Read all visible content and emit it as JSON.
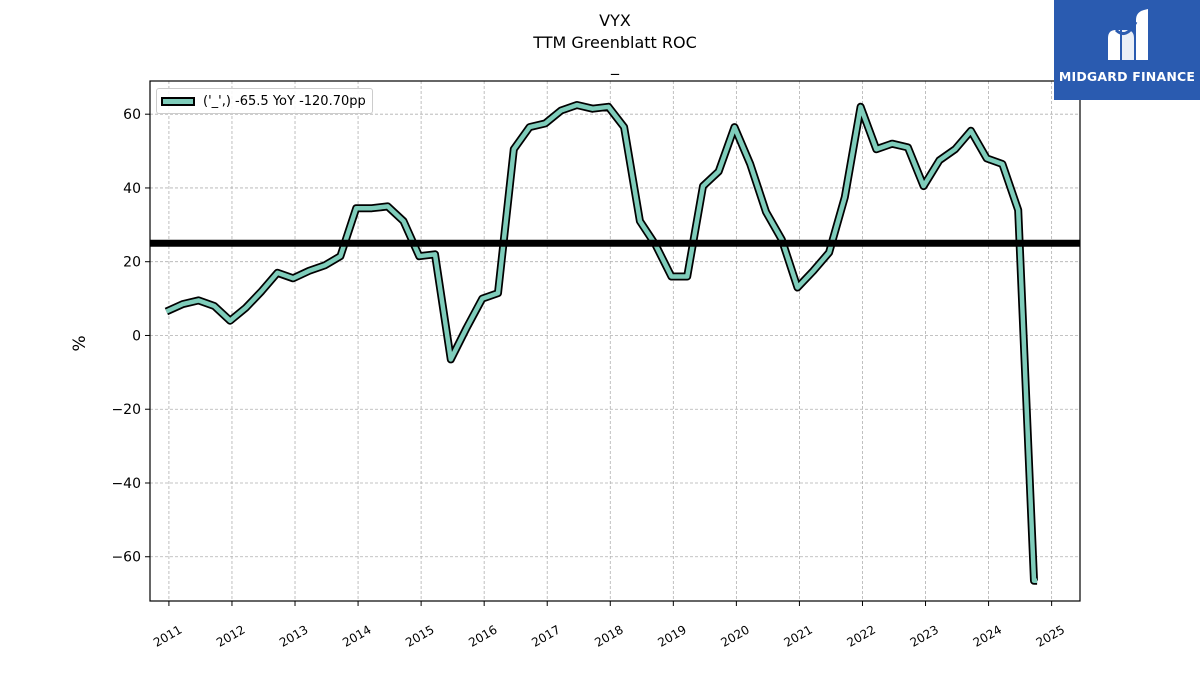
{
  "chart_data": {
    "type": "line",
    "title": "VYX",
    "subtitle": "TTM Greenblatt ROC",
    "subtitle2": "_",
    "ylabel": "%",
    "xlabel": "",
    "ylim": [
      -72,
      69
    ],
    "xlim": [
      2010.7,
      2025.45
    ],
    "yticks": [
      -60,
      -40,
      -20,
      0,
      20,
      40,
      60
    ],
    "ytick_labels": [
      "−60",
      "−40",
      "−20",
      "0",
      "20",
      "40",
      "60"
    ],
    "xticks": [
      2011,
      2012,
      2013,
      2014,
      2015,
      2016,
      2017,
      2018,
      2019,
      2020,
      2021,
      2022,
      2023,
      2024,
      2025
    ],
    "xtick_labels": [
      "2011",
      "2012",
      "2013",
      "2014",
      "2015",
      "2016",
      "2017",
      "2018",
      "2019",
      "2020",
      "2021",
      "2022",
      "2023",
      "2024",
      "2025"
    ],
    "grid": true,
    "legend_position": "top-left",
    "series": [
      {
        "name": "('_',) -65.5 YoY -120.70pp",
        "color": "#7fcdbb",
        "edge_color": "#000000",
        "points": [
          [
            2010.96,
            6.5
          ],
          [
            2011.22,
            8.5
          ],
          [
            2011.47,
            9.5
          ],
          [
            2011.72,
            8.0
          ],
          [
            2011.97,
            4.0
          ],
          [
            2012.22,
            7.5
          ],
          [
            2012.47,
            12.0
          ],
          [
            2012.72,
            17.0
          ],
          [
            2012.97,
            15.5
          ],
          [
            2013.22,
            17.5
          ],
          [
            2013.47,
            19.0
          ],
          [
            2013.72,
            21.5
          ],
          [
            2013.97,
            34.5
          ],
          [
            2014.22,
            34.5
          ],
          [
            2014.47,
            35.0
          ],
          [
            2014.72,
            31.0
          ],
          [
            2014.97,
            21.5
          ],
          [
            2015.22,
            22.0
          ],
          [
            2015.47,
            -6.5
          ],
          [
            2015.72,
            2.0
          ],
          [
            2015.97,
            10.0
          ],
          [
            2016.22,
            11.5
          ],
          [
            2016.47,
            50.5
          ],
          [
            2016.72,
            56.5
          ],
          [
            2016.97,
            57.5
          ],
          [
            2017.22,
            61.0
          ],
          [
            2017.47,
            62.5
          ],
          [
            2017.72,
            61.5
          ],
          [
            2017.97,
            62.0
          ],
          [
            2018.22,
            56.5
          ],
          [
            2018.47,
            31.0
          ],
          [
            2018.72,
            24.5
          ],
          [
            2018.97,
            16.0
          ],
          [
            2019.22,
            16.0
          ],
          [
            2019.47,
            40.5
          ],
          [
            2019.72,
            44.5
          ],
          [
            2019.97,
            56.5
          ],
          [
            2020.22,
            46.5
          ],
          [
            2020.47,
            33.5
          ],
          [
            2020.72,
            26.0
          ],
          [
            2020.97,
            13.0
          ],
          [
            2021.22,
            17.5
          ],
          [
            2021.47,
            22.5
          ],
          [
            2021.72,
            37.5
          ],
          [
            2021.97,
            62.0
          ],
          [
            2022.22,
            50.5
          ],
          [
            2022.47,
            52.0
          ],
          [
            2022.72,
            51.0
          ],
          [
            2022.97,
            40.5
          ],
          [
            2023.22,
            47.5
          ],
          [
            2023.47,
            50.5
          ],
          [
            2023.72,
            55.5
          ],
          [
            2023.97,
            48.0
          ],
          [
            2024.22,
            46.5
          ],
          [
            2024.47,
            34.0
          ],
          [
            2024.72,
            -66.5
          ],
          [
            2024.77,
            -66.5
          ]
        ]
      }
    ],
    "hline": {
      "value": 25,
      "color": "#000000"
    }
  },
  "logo": {
    "text": "MIDGARD FINANCE",
    "color": "#2a5bb0"
  }
}
